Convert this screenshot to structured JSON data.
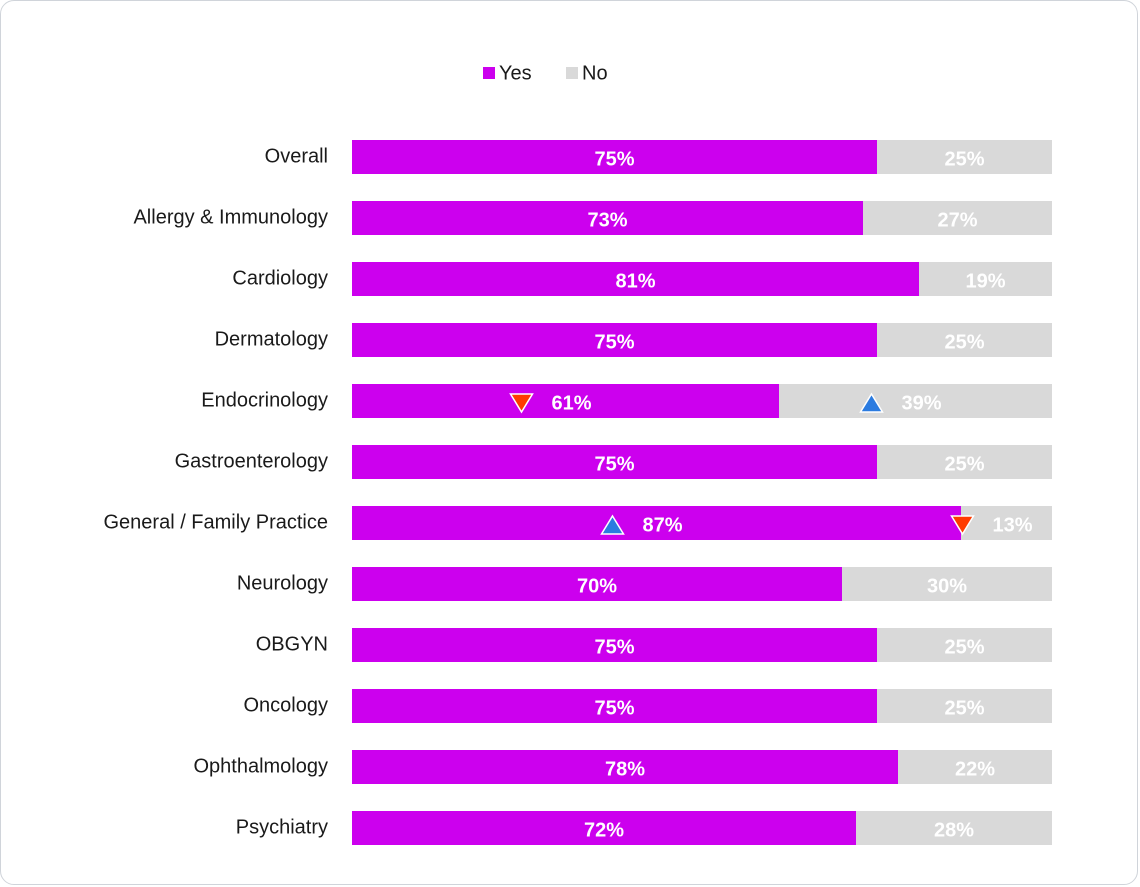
{
  "chart_data": {
    "type": "stacked-bar-horizontal",
    "categories": [
      "Overall",
      "Allergy & Immunology",
      "Cardiology",
      "Dermatology",
      "Endocrinology",
      "Gastroenterology",
      "General / Family Practice",
      "Neurology",
      "OBGYN",
      "Oncology",
      "Ophthalmology",
      "Psychiatry"
    ],
    "series": [
      {
        "name": "Yes",
        "color": "#cc00ee",
        "values": [
          75,
          73,
          81,
          75,
          61,
          75,
          87,
          70,
          75,
          75,
          78,
          72
        ],
        "value_labels": [
          "75%",
          "73%",
          "81%",
          "75%",
          "61%",
          "75%",
          "87%",
          "70%",
          "75%",
          "75%",
          "78%",
          "72%"
        ],
        "significance": [
          null,
          null,
          null,
          null,
          "down",
          null,
          "up",
          null,
          null,
          null,
          null,
          null
        ]
      },
      {
        "name": "No",
        "color": "#d9d9d9",
        "values": [
          25,
          27,
          19,
          25,
          39,
          25,
          13,
          30,
          25,
          25,
          22,
          28
        ],
        "value_labels": [
          "25%",
          "27%",
          "19%",
          "25%",
          "39%",
          "25%",
          "13%",
          "30%",
          "25%",
          "25%",
          "22%",
          "28%"
        ],
        "significance": [
          null,
          null,
          null,
          null,
          "up",
          null,
          "down",
          null,
          null,
          null,
          null,
          null
        ]
      }
    ],
    "xlim": [
      0,
      100
    ],
    "legend": "top"
  }
}
